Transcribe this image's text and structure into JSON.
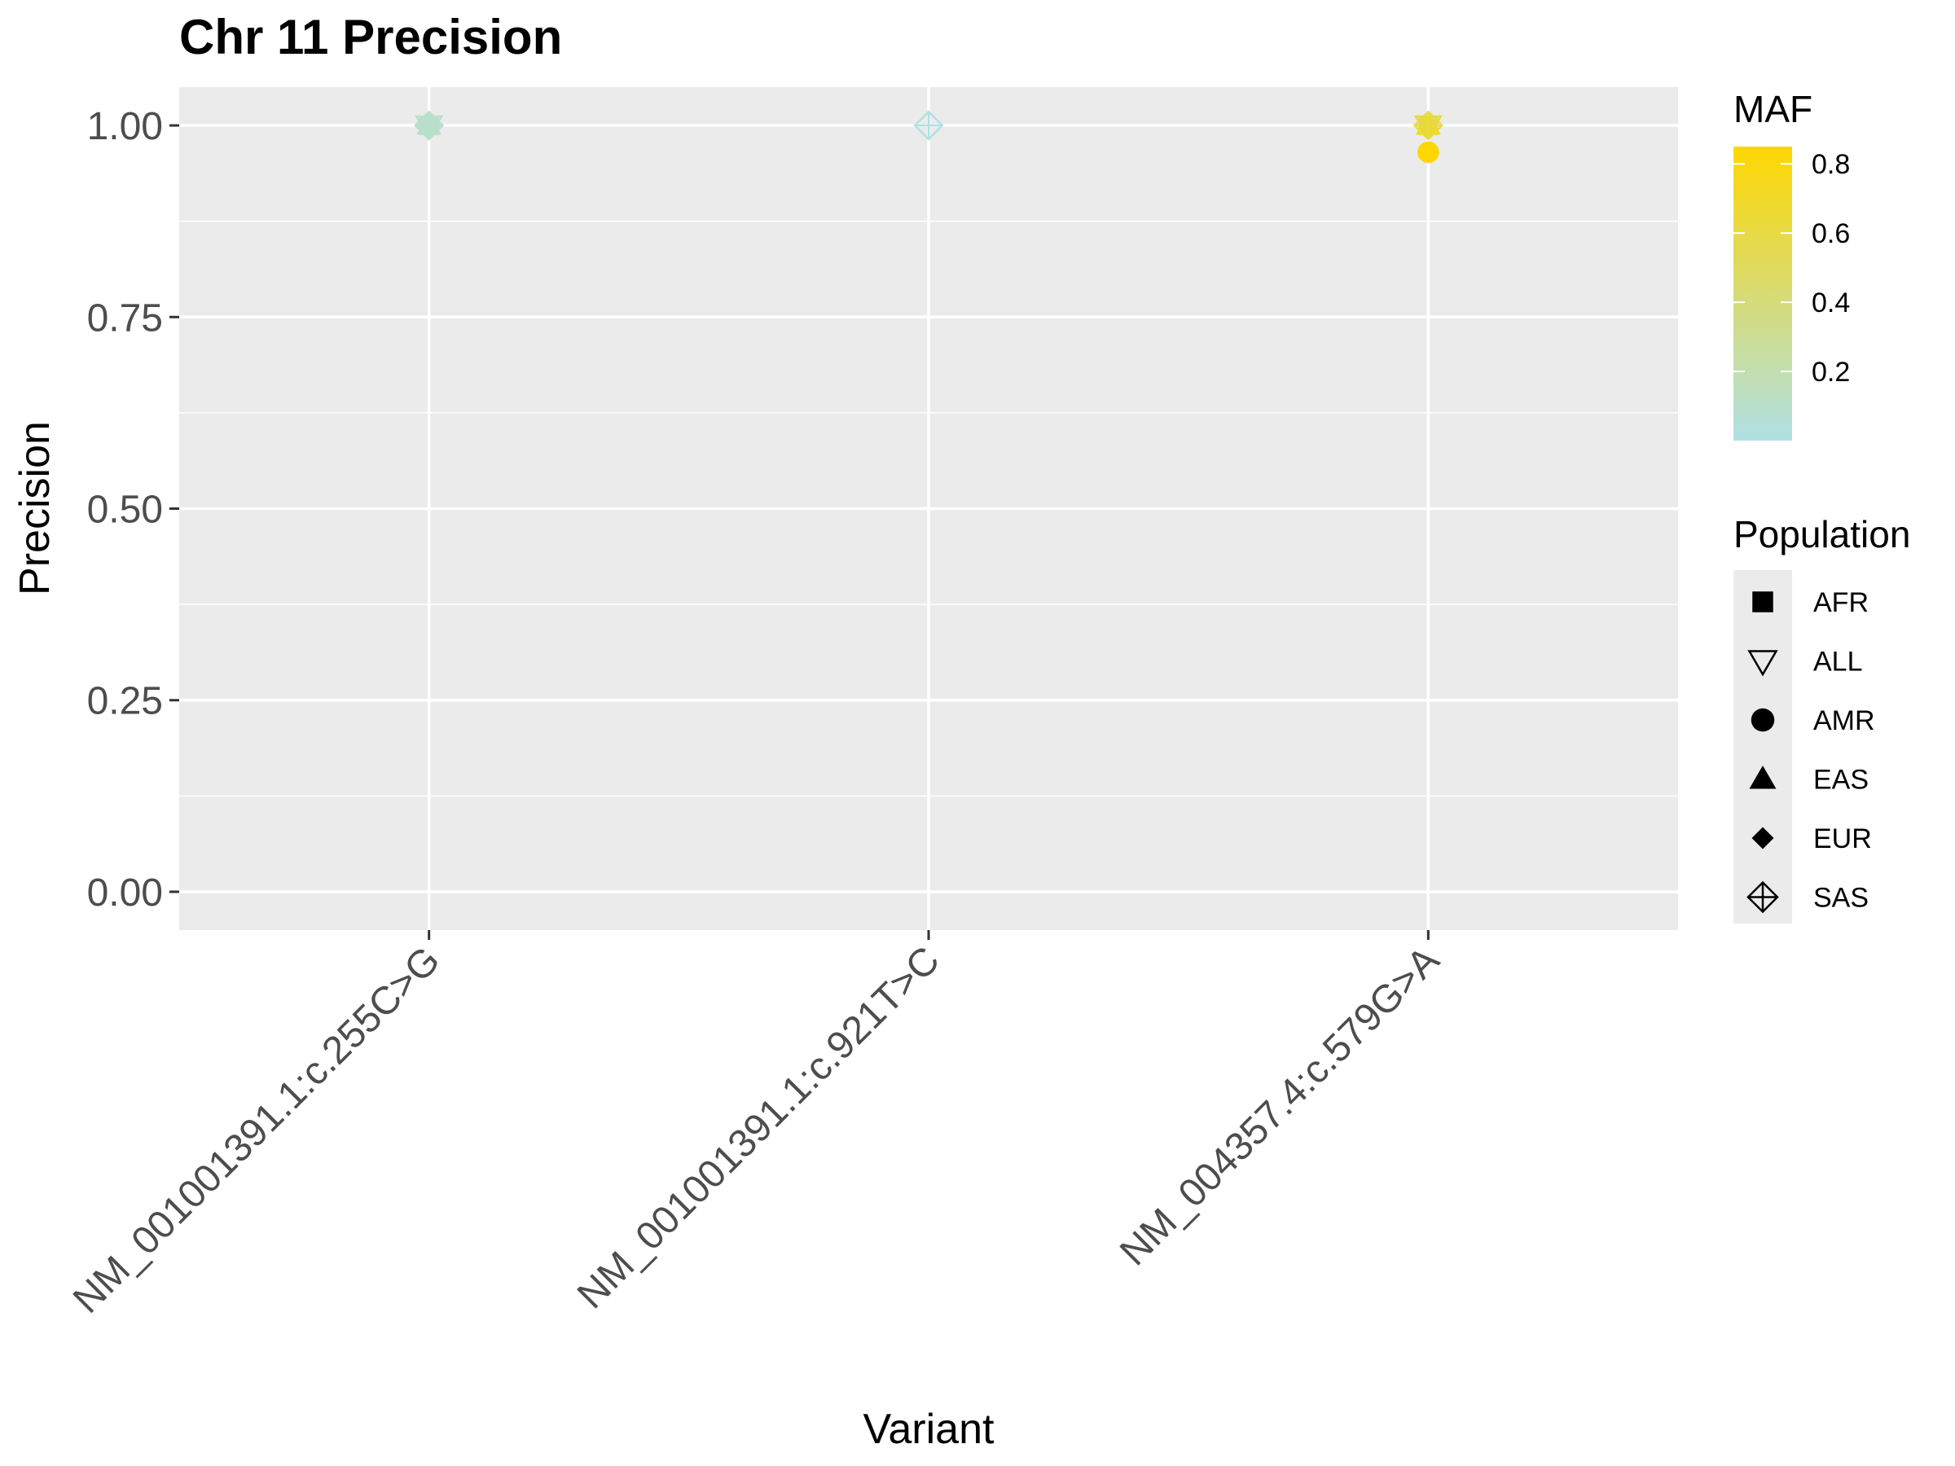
{
  "chart_data": {
    "type": "scatter",
    "title": "Chr 11 Precision",
    "xlabel": "Variant",
    "ylabel": "Precision",
    "categories": [
      "NM_001001391.1:c.255C>G",
      "NM_001001391.1:c.921T>C",
      "NM_004357.4:c.579G>A"
    ],
    "ylim": [
      -0.05,
      1.05
    ],
    "yticks": [
      0.0,
      0.25,
      0.5,
      0.75,
      1.0
    ],
    "ytick_labels": [
      "0.00",
      "0.25",
      "0.50",
      "0.75",
      "1.00"
    ],
    "grid": true,
    "background": "#ebebeb",
    "points": [
      {
        "variant": "NM_001001391.1:c.255C>G",
        "population": "AFR",
        "precision": 1.0,
        "maf": 0.1
      },
      {
        "variant": "NM_001001391.1:c.255C>G",
        "population": "ALL",
        "precision": 1.0,
        "maf": 0.1
      },
      {
        "variant": "NM_001001391.1:c.255C>G",
        "population": "AMR",
        "precision": 1.0,
        "maf": 0.1
      },
      {
        "variant": "NM_001001391.1:c.255C>G",
        "population": "EAS",
        "precision": 1.0,
        "maf": 0.1
      },
      {
        "variant": "NM_001001391.1:c.255C>G",
        "population": "EUR",
        "precision": 1.0,
        "maf": 0.1
      },
      {
        "variant": "NM_001001391.1:c.255C>G",
        "population": "SAS",
        "precision": 1.0,
        "maf": 0.1
      },
      {
        "variant": "NM_001001391.1:c.921T>C",
        "population": "SAS",
        "precision": 1.0,
        "maf": 0.02
      },
      {
        "variant": "NM_004357.4:c.579G>A",
        "population": "AFR",
        "precision": 1.0,
        "maf": 0.55
      },
      {
        "variant": "NM_004357.4:c.579G>A",
        "population": "ALL",
        "precision": 1.0,
        "maf": 0.62
      },
      {
        "variant": "NM_004357.4:c.579G>A",
        "population": "AMR",
        "precision": 0.965,
        "maf": 0.85
      },
      {
        "variant": "NM_004357.4:c.579G>A",
        "population": "EAS",
        "precision": 1.0,
        "maf": 0.75
      },
      {
        "variant": "NM_004357.4:c.579G>A",
        "population": "EUR",
        "precision": 1.0,
        "maf": 0.65
      },
      {
        "variant": "NM_004357.4:c.579G>A",
        "population": "SAS",
        "precision": 1.0,
        "maf": 0.6
      }
    ],
    "legend_maf": {
      "title": "MAF",
      "range": [
        0.0,
        0.85
      ],
      "ticks": [
        0.2,
        0.4,
        0.6,
        0.8
      ],
      "tick_labels": [
        "0.2",
        "0.4",
        "0.6",
        "0.8"
      ],
      "low_color": "#b0e0e6",
      "high_color": "#ffd700"
    },
    "legend_population": {
      "title": "Population",
      "items": [
        {
          "label": "AFR",
          "shape": "square"
        },
        {
          "label": "ALL",
          "shape": "triangle-down-open"
        },
        {
          "label": "AMR",
          "shape": "circle"
        },
        {
          "label": "EAS",
          "shape": "triangle"
        },
        {
          "label": "EUR",
          "shape": "diamond"
        },
        {
          "label": "SAS",
          "shape": "diamond-plus-open"
        }
      ]
    }
  }
}
